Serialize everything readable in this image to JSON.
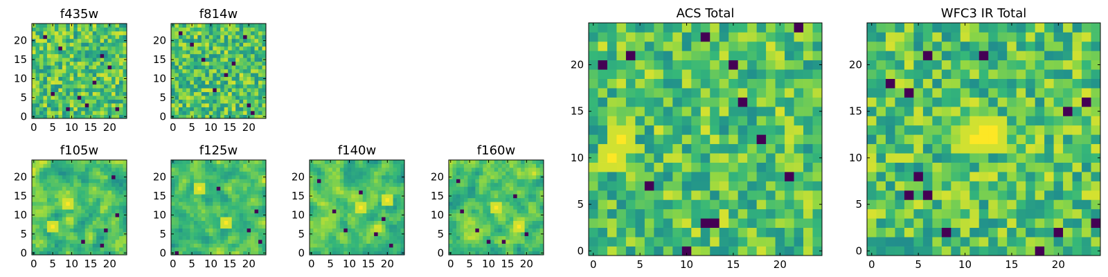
{
  "figure": {
    "background": "#ffffff",
    "colormap": "viridis",
    "colormap_stops": [
      "#440154",
      "#31688e",
      "#21918c",
      "#35b779",
      "#90d743",
      "#fde725"
    ]
  },
  "chart_data": [
    {
      "type": "heatmap",
      "title": "f435w",
      "grid_size": [
        25,
        25
      ],
      "x_range": [
        0,
        24
      ],
      "y_range": [
        0,
        24
      ],
      "x_ticks": [
        0,
        5,
        10,
        15,
        20
      ],
      "y_ticks": [
        0,
        5,
        10,
        15,
        20
      ],
      "y_origin": "bottom",
      "grid": false,
      "texture": "fine-noise",
      "seed": 11,
      "dark_pixels": [
        [
          22,
          2
        ],
        [
          20,
          13
        ],
        [
          7,
          18
        ],
        [
          12,
          5
        ],
        [
          16,
          9
        ],
        [
          3,
          21
        ],
        [
          9,
          2
        ],
        [
          18,
          16
        ],
        [
          14,
          3
        ],
        [
          5,
          6
        ]
      ],
      "bright_spots": []
    },
    {
      "type": "heatmap",
      "title": "f814w",
      "grid_size": [
        25,
        25
      ],
      "x_range": [
        0,
        24
      ],
      "y_range": [
        0,
        24
      ],
      "x_ticks": [
        0,
        5,
        10,
        15,
        20
      ],
      "y_ticks": [
        0,
        5,
        10,
        15,
        20
      ],
      "y_origin": "bottom",
      "grid": false,
      "texture": "fine-noise",
      "seed": 23,
      "dark_pixels": [
        [
          20,
          3
        ],
        [
          16,
          14
        ],
        [
          5,
          19
        ],
        [
          21,
          1
        ],
        [
          11,
          7
        ],
        [
          8,
          15
        ],
        [
          2,
          22
        ],
        [
          14,
          11
        ],
        [
          19,
          21
        ]
      ],
      "bright_spots": []
    },
    {
      "type": "heatmap",
      "title": "f105w",
      "grid_size": [
        25,
        25
      ],
      "x_range": [
        0,
        24
      ],
      "y_range": [
        0,
        24
      ],
      "x_ticks": [
        0,
        5,
        10,
        15,
        20
      ],
      "y_ticks": [
        0,
        5,
        10,
        15,
        20
      ],
      "y_origin": "bottom",
      "grid": false,
      "texture": "smooth",
      "seed": 37,
      "dark_pixels": [
        [
          21,
          20
        ],
        [
          22,
          10
        ],
        [
          13,
          3
        ],
        [
          19,
          6
        ],
        [
          18,
          2
        ]
      ],
      "bright_spots": [
        [
          9,
          13
        ],
        [
          5,
          7
        ]
      ]
    },
    {
      "type": "heatmap",
      "title": "f125w",
      "grid_size": [
        25,
        25
      ],
      "x_range": [
        0,
        24
      ],
      "y_range": [
        0,
        24
      ],
      "x_ticks": [
        0,
        5,
        10,
        15,
        20
      ],
      "y_ticks": [
        0,
        5,
        10,
        15,
        20
      ],
      "y_origin": "bottom",
      "grid": false,
      "texture": "smooth",
      "seed": 41,
      "dark_pixels": [
        [
          22,
          11
        ],
        [
          23,
          3
        ],
        [
          1,
          0
        ],
        [
          20,
          6
        ],
        [
          12,
          17
        ]
      ],
      "bright_spots": [
        [
          7,
          17
        ],
        [
          14,
          8
        ]
      ]
    },
    {
      "type": "heatmap",
      "title": "f140w",
      "grid_size": [
        25,
        25
      ],
      "x_range": [
        0,
        24
      ],
      "y_range": [
        0,
        24
      ],
      "x_ticks": [
        0,
        5,
        10,
        15,
        20
      ],
      "y_ticks": [
        0,
        5,
        10,
        15,
        20
      ],
      "y_origin": "bottom",
      "grid": false,
      "texture": "smooth",
      "seed": 53,
      "dark_pixels": [
        [
          6,
          11
        ],
        [
          9,
          6
        ],
        [
          17,
          5
        ],
        [
          21,
          2
        ],
        [
          13,
          16
        ],
        [
          2,
          19
        ],
        [
          19,
          9
        ]
      ],
      "bright_spots": [
        [
          13,
          12
        ],
        [
          20,
          14
        ]
      ]
    },
    {
      "type": "heatmap",
      "title": "f160w",
      "grid_size": [
        25,
        25
      ],
      "x_range": [
        0,
        24
      ],
      "y_range": [
        0,
        24
      ],
      "x_ticks": [
        0,
        5,
        10,
        15,
        20
      ],
      "y_ticks": [
        0,
        5,
        10,
        15,
        20
      ],
      "y_origin": "bottom",
      "grid": false,
      "texture": "smooth",
      "seed": 67,
      "dark_pixels": [
        [
          3,
          11
        ],
        [
          2,
          19
        ],
        [
          10,
          3
        ],
        [
          7,
          6
        ],
        [
          17,
          15
        ],
        [
          20,
          5
        ],
        [
          14,
          3
        ]
      ],
      "bright_spots": [
        [
          12,
          12
        ],
        [
          18,
          7
        ]
      ]
    },
    {
      "type": "heatmap",
      "title": "ACS Total",
      "grid_size": [
        25,
        25
      ],
      "x_range": [
        0,
        24
      ],
      "y_range": [
        0,
        24
      ],
      "x_ticks": [
        0,
        5,
        10,
        15,
        20
      ],
      "y_ticks": [
        0,
        5,
        10,
        15,
        20
      ],
      "y_origin": "bottom",
      "grid": false,
      "texture": "blocky",
      "seed": 79,
      "dark_pixels": [
        [
          12,
          3
        ],
        [
          13,
          3
        ],
        [
          10,
          0
        ],
        [
          6,
          7
        ],
        [
          16,
          16
        ],
        [
          15,
          20
        ],
        [
          21,
          8
        ],
        [
          12,
          23
        ],
        [
          4,
          21
        ],
        [
          22,
          24
        ],
        [
          1,
          20
        ],
        [
          18,
          12
        ]
      ],
      "bright_spots": [
        [
          3,
          12
        ],
        [
          2,
          10
        ]
      ]
    },
    {
      "type": "heatmap",
      "title": "WFC3 IR Total",
      "grid_size": [
        25,
        25
      ],
      "x_range": [
        0,
        24
      ],
      "y_range": [
        0,
        24
      ],
      "x_ticks": [
        0,
        5,
        10,
        15,
        20
      ],
      "y_ticks": [
        0,
        5,
        10,
        15,
        20
      ],
      "y_origin": "bottom",
      "grid": false,
      "texture": "blocky",
      "seed": 97,
      "dark_pixels": [
        [
          4,
          6
        ],
        [
          6,
          6
        ],
        [
          5,
          8
        ],
        [
          8,
          2
        ],
        [
          18,
          0
        ],
        [
          4,
          17
        ],
        [
          2,
          18
        ],
        [
          21,
          15
        ],
        [
          23,
          16
        ],
        [
          20,
          2
        ],
        [
          12,
          21
        ],
        [
          24,
          3
        ],
        [
          6,
          21
        ]
      ],
      "bright_spots": [
        [
          12,
          13
        ],
        [
          13,
          12
        ],
        [
          12,
          12
        ],
        [
          11,
          12
        ],
        [
          13,
          13
        ]
      ]
    }
  ]
}
